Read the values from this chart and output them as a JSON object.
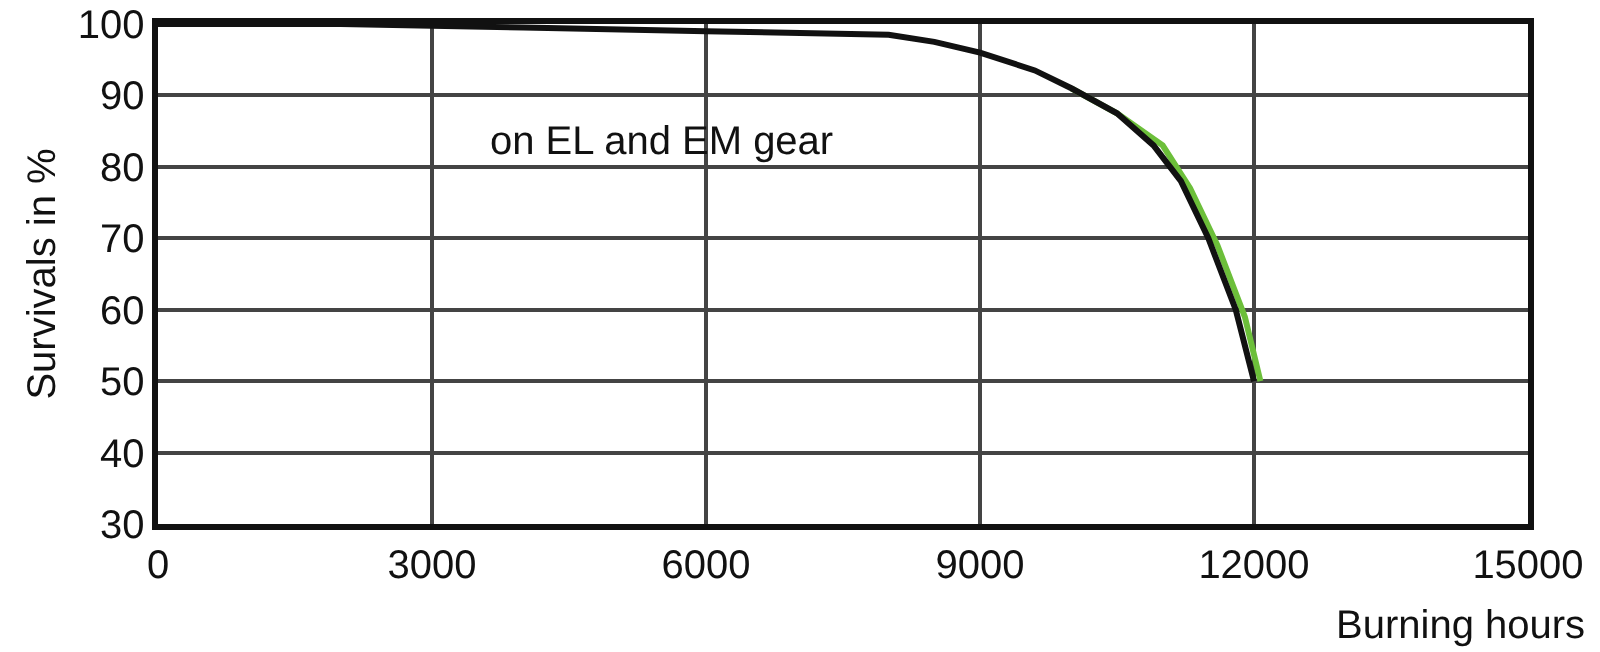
{
  "chart_data": {
    "type": "line",
    "xlabel": "Burning hours",
    "ylabel": "Survivals in %",
    "annotations": [
      "on EL and EM gear"
    ],
    "series": [
      {
        "color": "#6cbf3a",
        "x": [
          10000,
          10500,
          11000,
          11300,
          11600,
          11900,
          12070
        ],
        "values": [
          91,
          87.5,
          83,
          77,
          69,
          59,
          50
        ]
      },
      {
        "color": "#111111",
        "x": [
          0,
          2000,
          4000,
          6000,
          8000,
          8500,
          9000,
          9600,
          10000,
          10500,
          10900,
          11200,
          11500,
          11800,
          12000
        ],
        "values": [
          100,
          100,
          99.5,
          99,
          98.5,
          97.5,
          96,
          93.5,
          91,
          87.5,
          83,
          78,
          70,
          60,
          50
        ]
      }
    ],
    "xlim": [
      0,
      15000
    ],
    "xticks": [
      0,
      3000,
      6000,
      9000,
      12000,
      15000
    ],
    "ylim": [
      30,
      100
    ],
    "yticks": [
      30,
      40,
      50,
      60,
      70,
      80,
      90,
      100
    ],
    "grid": true,
    "marker": "none",
    "line_style": "solid"
  }
}
